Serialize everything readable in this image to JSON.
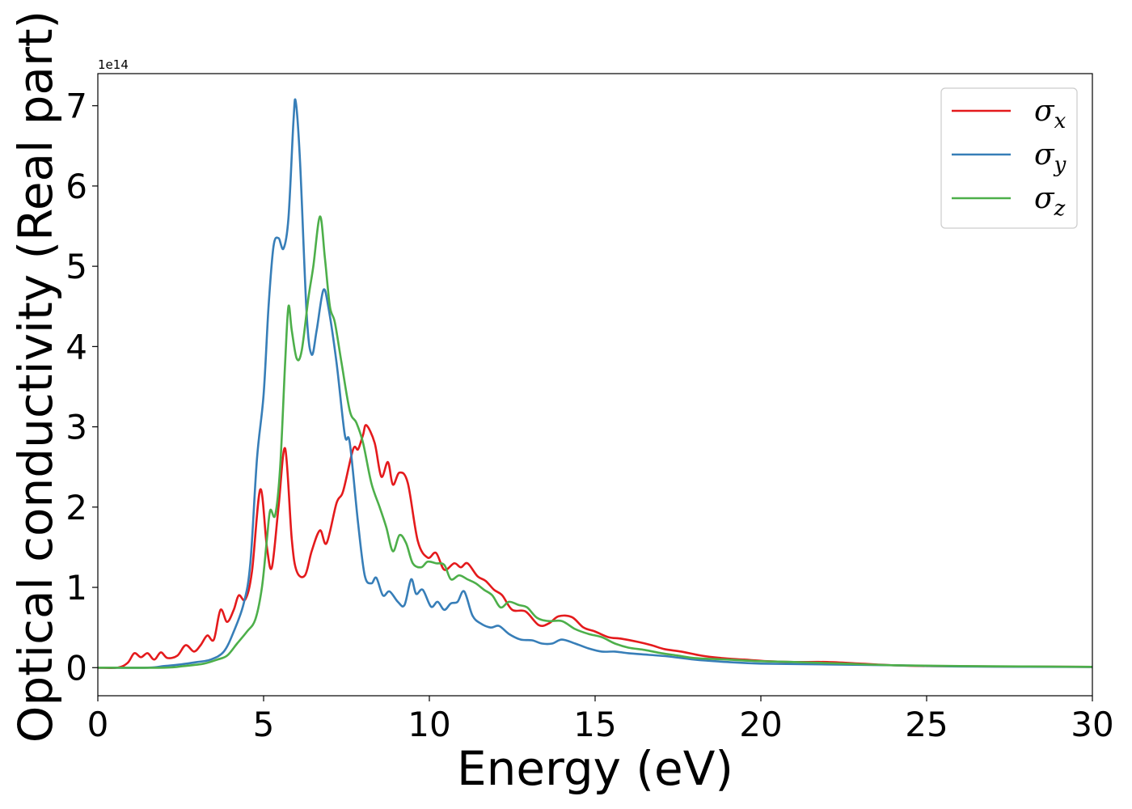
{
  "chart_data": {
    "type": "line",
    "xlabel": "Energy (eV)",
    "ylabel": "Optical conductivity (Real part)",
    "y_offset_text": "1e14",
    "xlim": [
      0,
      30
    ],
    "ylim": [
      -0.35,
      7.4
    ],
    "x_ticks": [
      0,
      5,
      10,
      15,
      20,
      25,
      30
    ],
    "x_tick_labels": [
      "0",
      "5",
      "10",
      "15",
      "20",
      "25",
      "30"
    ],
    "y_ticks": [
      0,
      1,
      2,
      3,
      4,
      5,
      6,
      7
    ],
    "y_tick_labels": [
      "0",
      "1",
      "2",
      "3",
      "4",
      "5",
      "6",
      "7"
    ],
    "grid": false,
    "legend_position": "top-right",
    "series": [
      {
        "name": "σx",
        "symbol": "σ",
        "subscript": "x",
        "color": "#e41a1c",
        "points": [
          [
            0,
            0
          ],
          [
            0.6,
            0
          ],
          [
            0.9,
            0.06
          ],
          [
            1.1,
            0.18
          ],
          [
            1.3,
            0.13
          ],
          [
            1.5,
            0.18
          ],
          [
            1.7,
            0.1
          ],
          [
            1.9,
            0.19
          ],
          [
            2.1,
            0.12
          ],
          [
            2.4,
            0.15
          ],
          [
            2.65,
            0.28
          ],
          [
            2.9,
            0.2
          ],
          [
            3.1,
            0.28
          ],
          [
            3.3,
            0.4
          ],
          [
            3.5,
            0.35
          ],
          [
            3.7,
            0.72
          ],
          [
            3.9,
            0.57
          ],
          [
            4.1,
            0.72
          ],
          [
            4.25,
            0.9
          ],
          [
            4.45,
            0.85
          ],
          [
            4.65,
            1.2
          ],
          [
            4.9,
            2.22
          ],
          [
            5.1,
            1.5
          ],
          [
            5.25,
            1.25
          ],
          [
            5.45,
            2.0
          ],
          [
            5.65,
            2.73
          ],
          [
            5.85,
            1.6
          ],
          [
            6.0,
            1.2
          ],
          [
            6.25,
            1.15
          ],
          [
            6.45,
            1.45
          ],
          [
            6.7,
            1.71
          ],
          [
            6.9,
            1.55
          ],
          [
            7.2,
            2.05
          ],
          [
            7.4,
            2.2
          ],
          [
            7.7,
            2.72
          ],
          [
            7.85,
            2.72
          ],
          [
            8.0,
            2.9
          ],
          [
            8.1,
            3.02
          ],
          [
            8.35,
            2.8
          ],
          [
            8.55,
            2.38
          ],
          [
            8.75,
            2.56
          ],
          [
            8.9,
            2.28
          ],
          [
            9.1,
            2.43
          ],
          [
            9.35,
            2.3
          ],
          [
            9.65,
            1.58
          ],
          [
            9.95,
            1.37
          ],
          [
            10.2,
            1.43
          ],
          [
            10.45,
            1.22
          ],
          [
            10.75,
            1.3
          ],
          [
            10.95,
            1.25
          ],
          [
            11.15,
            1.3
          ],
          [
            11.45,
            1.14
          ],
          [
            11.7,
            1.08
          ],
          [
            11.95,
            0.97
          ],
          [
            12.2,
            0.9
          ],
          [
            12.5,
            0.72
          ],
          [
            12.9,
            0.7
          ],
          [
            13.3,
            0.53
          ],
          [
            13.6,
            0.55
          ],
          [
            13.9,
            0.64
          ],
          [
            14.3,
            0.63
          ],
          [
            14.65,
            0.5
          ],
          [
            15.0,
            0.45
          ],
          [
            15.4,
            0.38
          ],
          [
            15.8,
            0.36
          ],
          [
            16.3,
            0.32
          ],
          [
            16.7,
            0.28
          ],
          [
            17.1,
            0.23
          ],
          [
            17.6,
            0.2
          ],
          [
            18.2,
            0.15
          ],
          [
            18.8,
            0.12
          ],
          [
            19.5,
            0.1
          ],
          [
            20.2,
            0.08
          ],
          [
            21.0,
            0.07
          ],
          [
            22.0,
            0.07
          ],
          [
            23.0,
            0.05
          ],
          [
            24.0,
            0.03
          ],
          [
            25.0,
            0.02
          ],
          [
            27.0,
            0.015
          ],
          [
            30.0,
            0.01
          ]
        ]
      },
      {
        "name": "σy",
        "symbol": "σ",
        "subscript": "y",
        "color": "#377eb8",
        "points": [
          [
            0,
            0
          ],
          [
            1.5,
            0
          ],
          [
            2.0,
            0.02
          ],
          [
            2.5,
            0.04
          ],
          [
            3.0,
            0.07
          ],
          [
            3.4,
            0.1
          ],
          [
            3.8,
            0.2
          ],
          [
            4.1,
            0.45
          ],
          [
            4.4,
            0.8
          ],
          [
            4.6,
            1.3
          ],
          [
            4.8,
            2.6
          ],
          [
            5.0,
            3.4
          ],
          [
            5.15,
            4.5
          ],
          [
            5.3,
            5.25
          ],
          [
            5.45,
            5.35
          ],
          [
            5.6,
            5.22
          ],
          [
            5.75,
            5.6
          ],
          [
            5.9,
            6.8
          ],
          [
            5.97,
            7.05
          ],
          [
            6.1,
            6.3
          ],
          [
            6.3,
            4.4
          ],
          [
            6.45,
            3.9
          ],
          [
            6.6,
            4.2
          ],
          [
            6.8,
            4.7
          ],
          [
            6.95,
            4.5
          ],
          [
            7.2,
            3.8
          ],
          [
            7.45,
            2.9
          ],
          [
            7.6,
            2.8
          ],
          [
            7.85,
            1.8
          ],
          [
            8.05,
            1.15
          ],
          [
            8.25,
            1.05
          ],
          [
            8.4,
            1.12
          ],
          [
            8.6,
            0.9
          ],
          [
            8.8,
            0.95
          ],
          [
            9.05,
            0.82
          ],
          [
            9.25,
            0.78
          ],
          [
            9.45,
            1.1
          ],
          [
            9.6,
            0.92
          ],
          [
            9.8,
            0.97
          ],
          [
            10.05,
            0.76
          ],
          [
            10.25,
            0.82
          ],
          [
            10.45,
            0.72
          ],
          [
            10.65,
            0.8
          ],
          [
            10.85,
            0.82
          ],
          [
            11.05,
            0.95
          ],
          [
            11.3,
            0.65
          ],
          [
            11.55,
            0.55
          ],
          [
            11.85,
            0.5
          ],
          [
            12.1,
            0.52
          ],
          [
            12.4,
            0.42
          ],
          [
            12.75,
            0.35
          ],
          [
            13.1,
            0.34
          ],
          [
            13.4,
            0.3
          ],
          [
            13.7,
            0.3
          ],
          [
            14.0,
            0.35
          ],
          [
            14.4,
            0.3
          ],
          [
            14.8,
            0.24
          ],
          [
            15.2,
            0.2
          ],
          [
            15.6,
            0.2
          ],
          [
            16.0,
            0.18
          ],
          [
            16.6,
            0.16
          ],
          [
            17.2,
            0.14
          ],
          [
            18.0,
            0.1
          ],
          [
            19.0,
            0.07
          ],
          [
            20.0,
            0.05
          ],
          [
            22.0,
            0.04
          ],
          [
            24.0,
            0.03
          ],
          [
            26.0,
            0.015
          ],
          [
            30.0,
            0.008
          ]
        ]
      },
      {
        "name": "σz",
        "symbol": "σ",
        "subscript": "z",
        "color": "#4daf4a",
        "points": [
          [
            0,
            0
          ],
          [
            2.0,
            0
          ],
          [
            2.6,
            0.02
          ],
          [
            3.2,
            0.05
          ],
          [
            3.6,
            0.1
          ],
          [
            3.9,
            0.15
          ],
          [
            4.2,
            0.3
          ],
          [
            4.5,
            0.45
          ],
          [
            4.75,
            0.6
          ],
          [
            4.95,
            1.0
          ],
          [
            5.1,
            1.6
          ],
          [
            5.2,
            1.96
          ],
          [
            5.35,
            1.9
          ],
          [
            5.5,
            2.5
          ],
          [
            5.65,
            3.8
          ],
          [
            5.75,
            4.5
          ],
          [
            5.85,
            4.2
          ],
          [
            6.0,
            3.85
          ],
          [
            6.15,
            3.95
          ],
          [
            6.35,
            4.6
          ],
          [
            6.5,
            5.0
          ],
          [
            6.7,
            5.62
          ],
          [
            6.85,
            5.1
          ],
          [
            7.0,
            4.5
          ],
          [
            7.15,
            4.3
          ],
          [
            7.35,
            3.8
          ],
          [
            7.6,
            3.2
          ],
          [
            7.8,
            3.05
          ],
          [
            8.0,
            2.8
          ],
          [
            8.25,
            2.3
          ],
          [
            8.5,
            2.0
          ],
          [
            8.7,
            1.75
          ],
          [
            8.9,
            1.45
          ],
          [
            9.1,
            1.65
          ],
          [
            9.3,
            1.55
          ],
          [
            9.5,
            1.3
          ],
          [
            9.75,
            1.25
          ],
          [
            9.95,
            1.32
          ],
          [
            10.2,
            1.3
          ],
          [
            10.45,
            1.28
          ],
          [
            10.65,
            1.1
          ],
          [
            10.9,
            1.15
          ],
          [
            11.15,
            1.1
          ],
          [
            11.4,
            1.05
          ],
          [
            11.65,
            0.97
          ],
          [
            11.9,
            0.9
          ],
          [
            12.15,
            0.75
          ],
          [
            12.4,
            0.82
          ],
          [
            12.7,
            0.78
          ],
          [
            12.95,
            0.75
          ],
          [
            13.25,
            0.62
          ],
          [
            13.6,
            0.58
          ],
          [
            14.0,
            0.58
          ],
          [
            14.4,
            0.48
          ],
          [
            14.8,
            0.42
          ],
          [
            15.2,
            0.38
          ],
          [
            15.6,
            0.3
          ],
          [
            16.0,
            0.25
          ],
          [
            16.5,
            0.22
          ],
          [
            17.0,
            0.18
          ],
          [
            17.5,
            0.15
          ],
          [
            18.0,
            0.12
          ],
          [
            19.0,
            0.1
          ],
          [
            20.0,
            0.08
          ],
          [
            21.0,
            0.07
          ],
          [
            22.5,
            0.05
          ],
          [
            24.0,
            0.03
          ],
          [
            26.0,
            0.02
          ],
          [
            30.0,
            0.01
          ]
        ]
      }
    ]
  }
}
